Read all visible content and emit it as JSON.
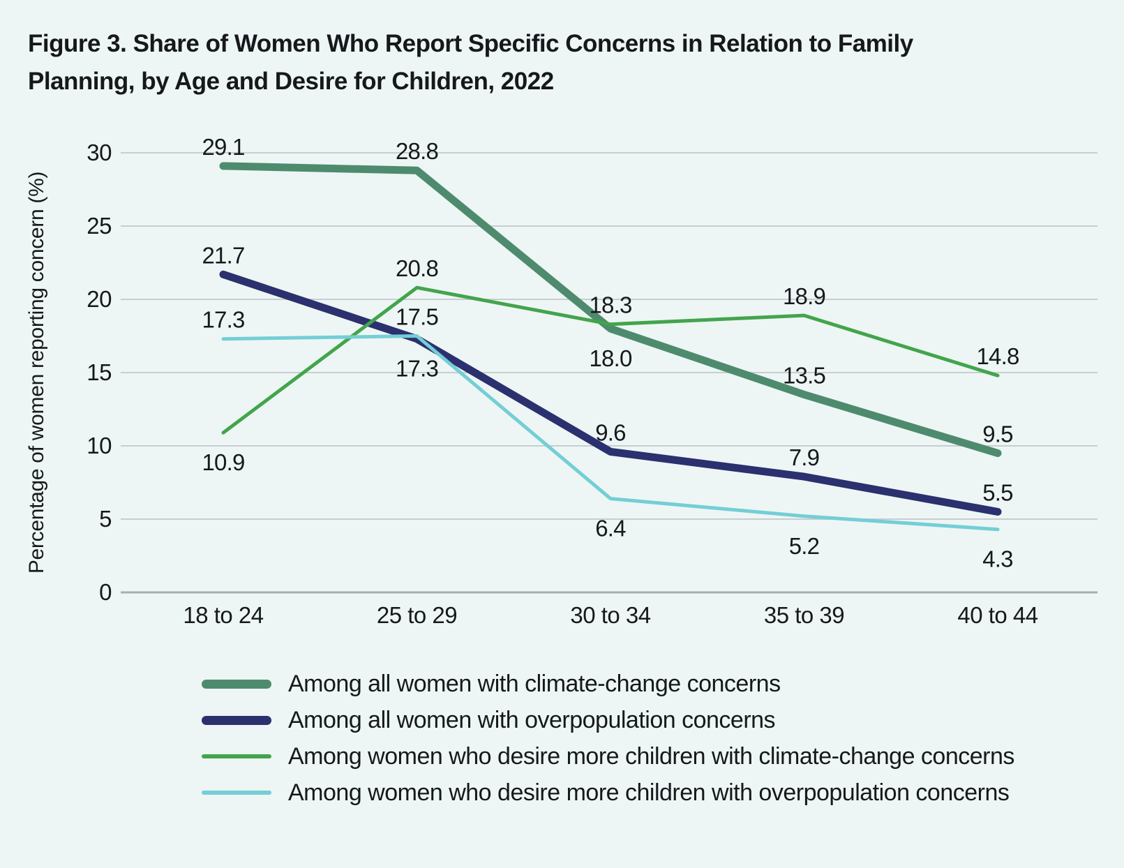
{
  "title": "Figure 3. Share of Women Who Report Specific Concerns in Relation to Family Planning, by Age and Desire for Children, 2022",
  "colors": {
    "background": "#edf6f4",
    "grid": "#c8cdd1",
    "zero_axis": "#a8adb3",
    "text": "#16181c"
  },
  "chart_data": {
    "type": "line",
    "categories": [
      "18 to 24",
      "25 to 29",
      "30 to 34",
      "35 to 39",
      "40 to 44"
    ],
    "xlabel": "",
    "ylabel": "Percentage of women reporting concern (%)",
    "ylim": [
      0,
      30
    ],
    "yticks": [
      0,
      5,
      10,
      15,
      20,
      25,
      30
    ],
    "grid": true,
    "legend_position": "bottom",
    "series": [
      {
        "name": "Among all women with climate-change concerns",
        "color": "#4e8b6e",
        "thickness": "thick",
        "values": [
          29.1,
          28.8,
          18.0,
          13.5,
          9.5
        ],
        "label_side": [
          "above",
          "above",
          "below",
          "above",
          "above"
        ]
      },
      {
        "name": "Among all women with overpopulation concerns",
        "color": "#2b306e",
        "thickness": "thick",
        "values": [
          21.7,
          17.3,
          9.6,
          7.9,
          5.5
        ],
        "label_side": [
          "above",
          "below",
          "above",
          "above",
          "above"
        ]
      },
      {
        "name": "Among women who desire more children with climate-change concerns",
        "color": "#43a44c",
        "thickness": "thin",
        "values": [
          10.9,
          20.8,
          18.3,
          18.9,
          14.8
        ],
        "label_side": [
          "below",
          "above",
          "above",
          "above",
          "above"
        ]
      },
      {
        "name": "Among women who desire more children with overpopulation concerns",
        "color": "#74ced6",
        "thickness": "thin",
        "values": [
          17.3,
          17.5,
          6.4,
          5.2,
          4.3
        ],
        "label_side": [
          "above",
          "above",
          "below",
          "below",
          "below"
        ]
      }
    ]
  }
}
